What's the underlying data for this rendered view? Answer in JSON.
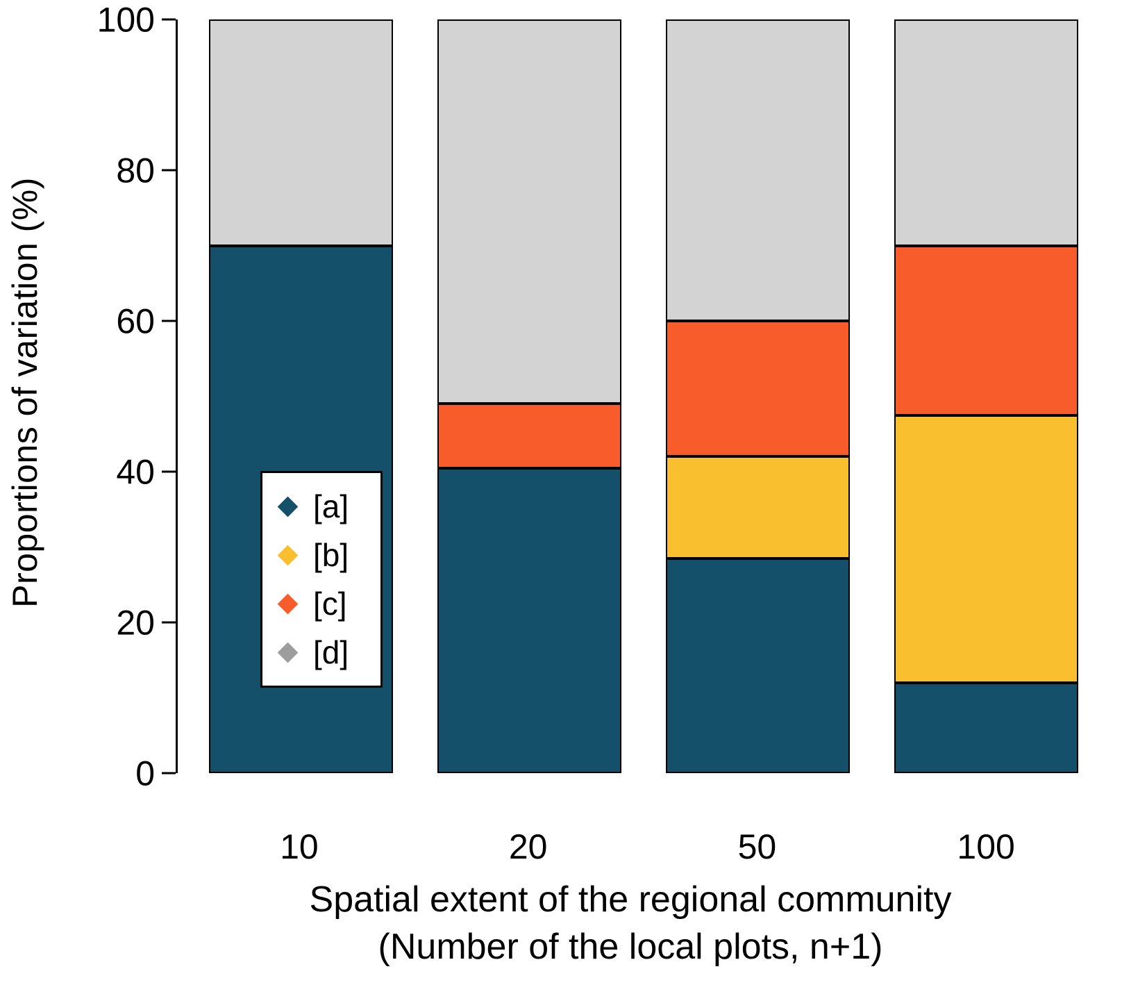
{
  "chart_data": {
    "type": "bar",
    "subtype": "stacked",
    "title": "",
    "xlabel_line1": "Spatial extent of the regional community",
    "xlabel_line2": "(Number of the local plots, n+1)",
    "ylabel": "Proportions of variation (%)",
    "ylim": [
      0,
      100
    ],
    "yticks": [
      0,
      20,
      40,
      60,
      80,
      100
    ],
    "categories": [
      "10",
      "20",
      "50",
      "100"
    ],
    "series": [
      {
        "name": "[a]",
        "color": "#15506a",
        "values": [
          70,
          40.5,
          28.5,
          12
        ]
      },
      {
        "name": "[b]",
        "color": "#f9bf2e",
        "values": [
          0,
          0,
          13.5,
          35.5
        ]
      },
      {
        "name": "[c]",
        "color": "#f85c2b",
        "values": [
          0,
          8.5,
          18,
          22.5
        ]
      },
      {
        "name": "[d]",
        "color": "#d3d3d3",
        "values": [
          30,
          51,
          40,
          30
        ]
      }
    ],
    "legend": {
      "position": "inside-left",
      "entries": [
        {
          "label": "[a]",
          "color": "#15506a"
        },
        {
          "label": "[b]",
          "color": "#f9bf2e"
        },
        {
          "label": "[c]",
          "color": "#f85c2b"
        },
        {
          "label": "[d]",
          "color": "#9d9d9d"
        }
      ]
    },
    "bar_border_color": "#000000",
    "axis_color": "#000000",
    "grid": false
  }
}
